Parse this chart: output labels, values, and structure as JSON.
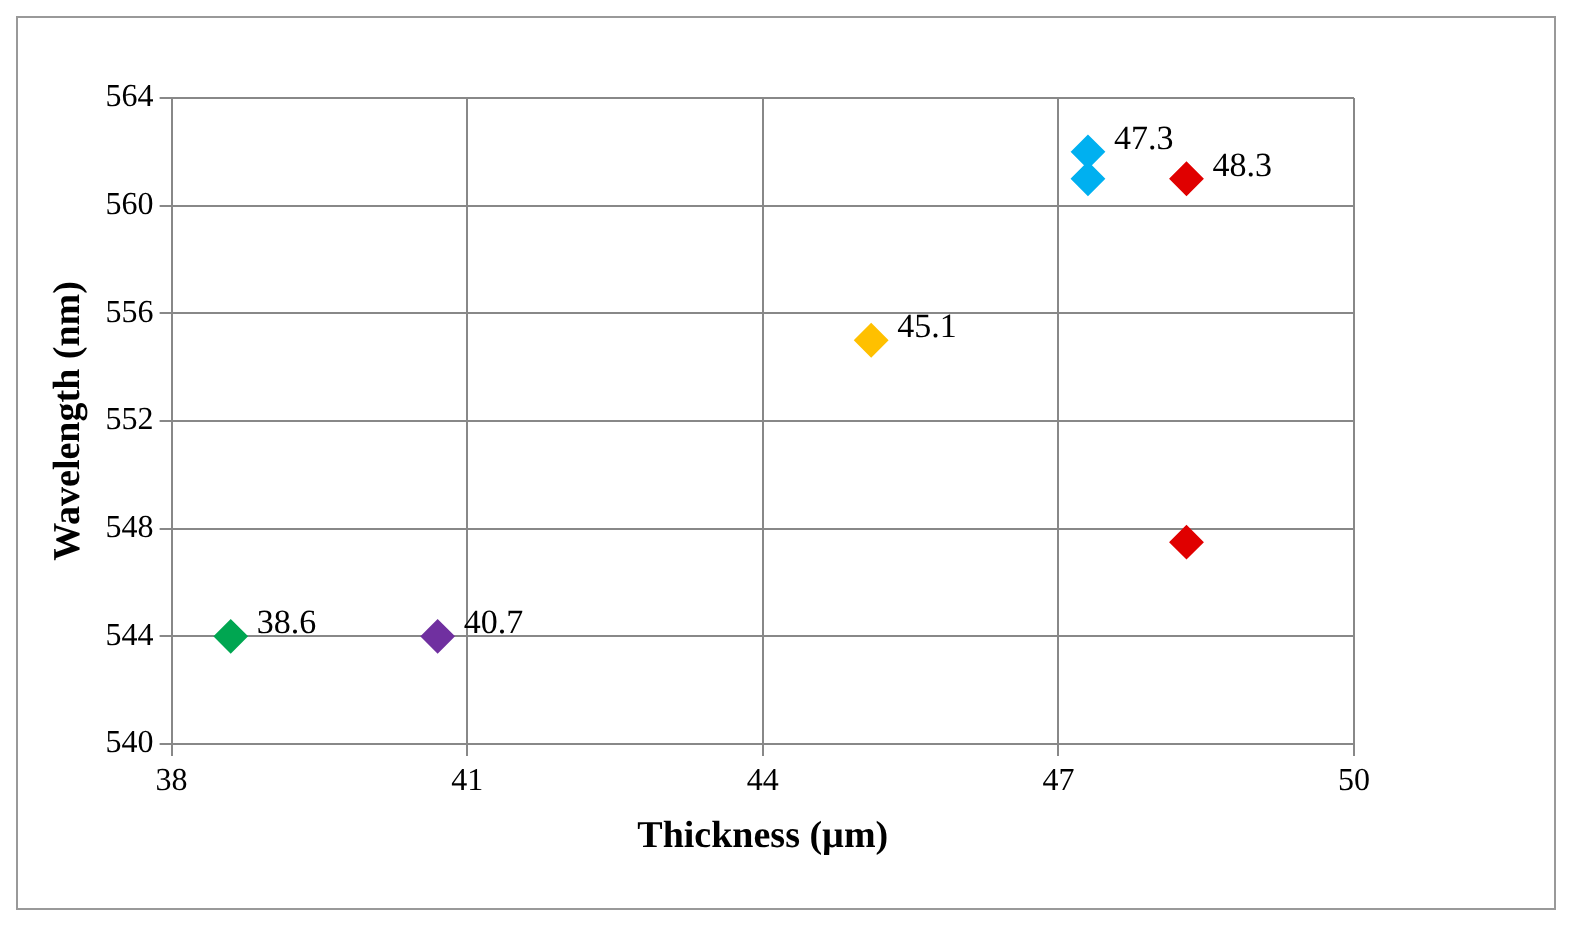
{
  "chart_data": {
    "type": "scatter",
    "xlabel": "Thickness (µm)",
    "ylabel": "Wavelength (nm)",
    "series": [
      {
        "color": "#00a651",
        "x": [
          38.6
        ],
        "values": [
          544
        ]
      },
      {
        "color": "#7030a0",
        "x": [
          40.7
        ],
        "values": [
          544
        ]
      },
      {
        "color": "#ffc000",
        "x": [
          45.1
        ],
        "values": [
          555
        ]
      },
      {
        "color": "#00b0f0",
        "x": [
          47.3,
          47.3
        ],
        "values": [
          562,
          561
        ]
      },
      {
        "color": "#e00000",
        "x": [
          48.3,
          48.3
        ],
        "values": [
          561,
          547.5
        ]
      }
    ],
    "annotations": [
      {
        "text": "38.6",
        "x": 38.6,
        "y": 544
      },
      {
        "text": "40.7",
        "x": 40.7,
        "y": 544
      },
      {
        "text": "45.1",
        "x": 45.1,
        "y": 555
      },
      {
        "text": "47.3",
        "x": 47.3,
        "y": 562
      },
      {
        "text": "48.3",
        "x": 48.3,
        "y": 561
      }
    ],
    "xlim": [
      38,
      50
    ],
    "xticks": [
      38,
      41,
      44,
      47,
      50
    ],
    "ylim": [
      540,
      564
    ],
    "yticks": [
      540,
      544,
      548,
      552,
      556,
      560,
      564
    ],
    "grid": true,
    "legend": false,
    "marker": "diamond"
  }
}
